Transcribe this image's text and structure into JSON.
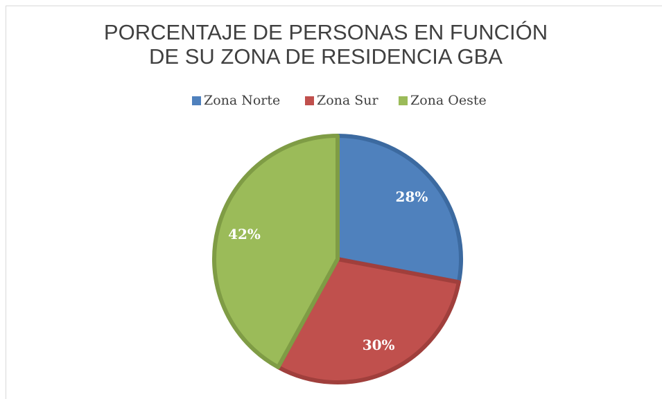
{
  "chart_data": {
    "type": "pie",
    "title": [
      "PORCENTAJE DE PERSONAS EN FUNCIÓN",
      "DE SU ZONA DE RESIDENCIA GBA"
    ],
    "categories": [
      "Zona Norte",
      "Zona Sur",
      "Zona Oeste"
    ],
    "values": [
      28,
      30,
      42
    ],
    "value_labels": [
      "28%",
      "30%",
      "42%"
    ],
    "colors": [
      "#4f81bd",
      "#c0504d",
      "#9bbb59"
    ],
    "edge_colors": [
      "#3c6aa0",
      "#a03f3c",
      "#7f9c45"
    ],
    "legend": "top"
  }
}
